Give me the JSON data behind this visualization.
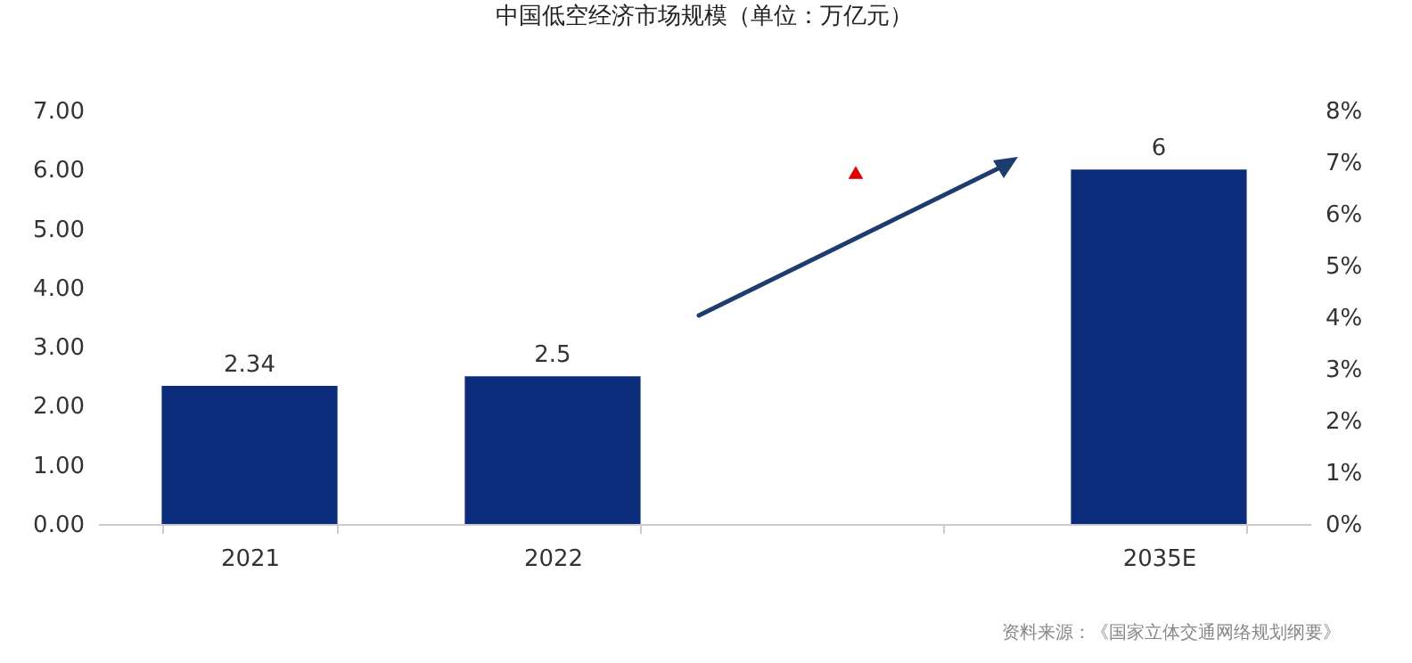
{
  "chart_data": {
    "type": "bar",
    "title": "中国低空经济市场规模（单位：万亿元）",
    "categories": [
      "2021",
      "2022",
      null,
      "2035E"
    ],
    "series": [
      {
        "color": "#0b2c7a",
        "values": [
          2.34,
          2.5,
          null,
          6
        ],
        "value_labels": [
          "2.34",
          "2.5",
          null,
          "6"
        ]
      },
      {
        "type": "scatter",
        "axis": "y2",
        "color": "#e00000",
        "marker": "triangle",
        "values": [
          null,
          null,
          6.8,
          null
        ]
      }
    ],
    "ylim": [
      0,
      7
    ],
    "yticks": [
      {
        "value": 0,
        "label": "0.00"
      },
      {
        "value": 1,
        "label": "1.00"
      },
      {
        "value": 2,
        "label": "2.00"
      },
      {
        "value": 3,
        "label": "3.00"
      },
      {
        "value": 4,
        "label": "4.00"
      },
      {
        "value": 5,
        "label": "5.00"
      },
      {
        "value": 6,
        "label": "6.00"
      },
      {
        "value": 7,
        "label": "7.00"
      }
    ],
    "y2lim": [
      0,
      8
    ],
    "y2ticks": [
      {
        "value": 0,
        "label": "0%"
      },
      {
        "value": 1,
        "label": "1%"
      },
      {
        "value": 2,
        "label": "2%"
      },
      {
        "value": 3,
        "label": "3%"
      },
      {
        "value": 4,
        "label": "4%"
      },
      {
        "value": 5,
        "label": "5%"
      },
      {
        "value": 6,
        "label": "6%"
      },
      {
        "value": 7,
        "label": "7%"
      },
      {
        "value": 8,
        "label": "8%"
      }
    ],
    "grid": false,
    "annotations": [
      "资料来源：《国家立体交通网络规划纲要》"
    ]
  }
}
